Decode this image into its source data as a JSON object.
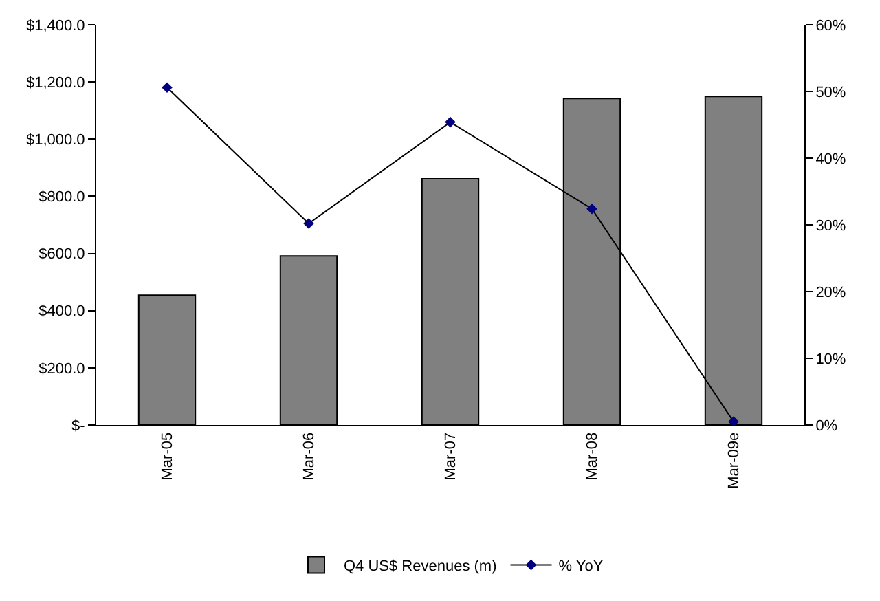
{
  "chart_data": {
    "type": "bar",
    "categories": [
      "Mar-05",
      "Mar-06",
      "Mar-07",
      "Mar-08",
      "Mar-09e"
    ],
    "series": [
      {
        "name": "Q4 US$ Revenues (m)",
        "color": "#808080",
        "values": [
          454,
          591,
          861,
          1142,
          1149
        ]
      },
      {
        "name": "% YoY",
        "type": "line",
        "axis": "y2",
        "color": "#000000",
        "colors": [
          "#000080",
          "#000080",
          "#000080",
          "#000080",
          "#000080"
        ],
        "marker": "diamond",
        "line_style": "solid",
        "values": [
          50.6,
          30.2,
          45.4,
          32.4,
          0.5
        ]
      }
    ],
    "ylim": [
      0,
      1400
    ],
    "yticks": [
      {
        "value": 0,
        "label": "$-"
      },
      {
        "value": 200,
        "label": "$200.0"
      },
      {
        "value": 400,
        "label": "$400.0"
      },
      {
        "value": 600,
        "label": "$600.0"
      },
      {
        "value": 800,
        "label": "$800.0"
      },
      {
        "value": 1000,
        "label": "$1,000.0"
      },
      {
        "value": 1200,
        "label": "$1,200.0"
      },
      {
        "value": 1400,
        "label": "$1,400.0"
      }
    ],
    "y2lim": [
      0,
      60
    ],
    "y2ticks": [
      {
        "value": 0,
        "label": "0%"
      },
      {
        "value": 10,
        "label": "10%"
      },
      {
        "value": 20,
        "label": "20%"
      },
      {
        "value": 30,
        "label": "30%"
      },
      {
        "value": 40,
        "label": "40%"
      },
      {
        "value": 50,
        "label": "50%"
      },
      {
        "value": 60,
        "label": "60%"
      }
    ],
    "legend": "bottom"
  }
}
